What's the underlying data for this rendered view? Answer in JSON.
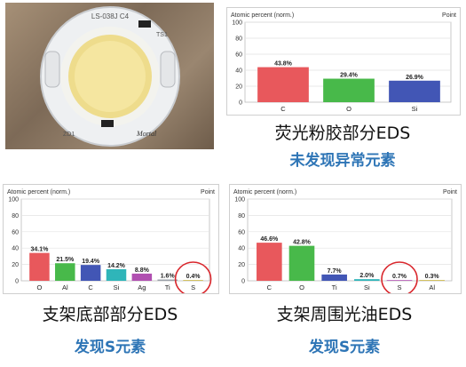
{
  "photo": {
    "board_text": "LS-038J C4",
    "corner_marks": [
      "ZD1",
      "TS1"
    ],
    "brand_mark": "Mortal"
  },
  "captions": {
    "top_right": "荧光粉胶部分EDS",
    "top_right_note": "未发现异常元素",
    "bottom_left": "支架底部部分EDS",
    "bottom_left_note": "发现S元素",
    "bottom_right": "支架周围光油EDS",
    "bottom_right_note": "发现S元素"
  },
  "chart_data": [
    {
      "id": "top",
      "type": "bar",
      "ylabel": "Atomic percent (norm.)",
      "point_label": "Point",
      "ylim": [
        0,
        100
      ],
      "yticks": [
        0,
        20,
        40,
        60,
        80,
        100
      ],
      "categories": [
        "C",
        "O",
        "Si"
      ],
      "values": [
        43.8,
        29.4,
        26.9
      ],
      "labels": [
        "43.8%",
        "29.4%",
        "26.9%"
      ],
      "colors": [
        "#e8585c",
        "#48b94a",
        "#4256b5"
      ],
      "grid": true,
      "legend": "none"
    },
    {
      "id": "bl",
      "type": "bar",
      "ylabel": "Atomic percent (norm.)",
      "point_label": "Point",
      "ylim": [
        0,
        100
      ],
      "yticks": [
        0,
        20,
        40,
        60,
        80,
        100
      ],
      "categories": [
        "O",
        "Al",
        "C",
        "Si",
        "Ag",
        "Ti",
        "S"
      ],
      "values": [
        34.1,
        21.5,
        19.4,
        14.2,
        8.8,
        1.6,
        0.4
      ],
      "labels": [
        "34.1%",
        "21.5%",
        "19.4%",
        "14.2%",
        "8.8%",
        "1.6%",
        "0.4%"
      ],
      "colors": [
        "#e8585c",
        "#48b94a",
        "#4256b5",
        "#2fb5b9",
        "#b04fb0",
        "#9aa0a8",
        "#c8b23a"
      ],
      "highlight_index": 6,
      "grid": true,
      "legend": "none"
    },
    {
      "id": "br",
      "type": "bar",
      "ylabel": "Atomic percent (norm.)",
      "point_label": "Point",
      "ylim": [
        0,
        100
      ],
      "yticks": [
        0,
        20,
        40,
        60,
        80,
        100
      ],
      "categories": [
        "C",
        "O",
        "Ti",
        "Si",
        "S",
        "Al"
      ],
      "values": [
        46.6,
        42.8,
        7.7,
        2.0,
        0.7,
        0.3
      ],
      "labels": [
        "46.6%",
        "42.8%",
        "7.7%",
        "2.0%",
        "0.7%",
        "0.3%"
      ],
      "colors": [
        "#e8585c",
        "#48b94a",
        "#4256b5",
        "#2fb5b9",
        "#b04fb0",
        "#c8b23a"
      ],
      "highlight_index": 4,
      "grid": true,
      "legend": "none"
    }
  ],
  "colors": {
    "highlight_circle": "#d9262c",
    "note_blue": "#2e75b6"
  }
}
